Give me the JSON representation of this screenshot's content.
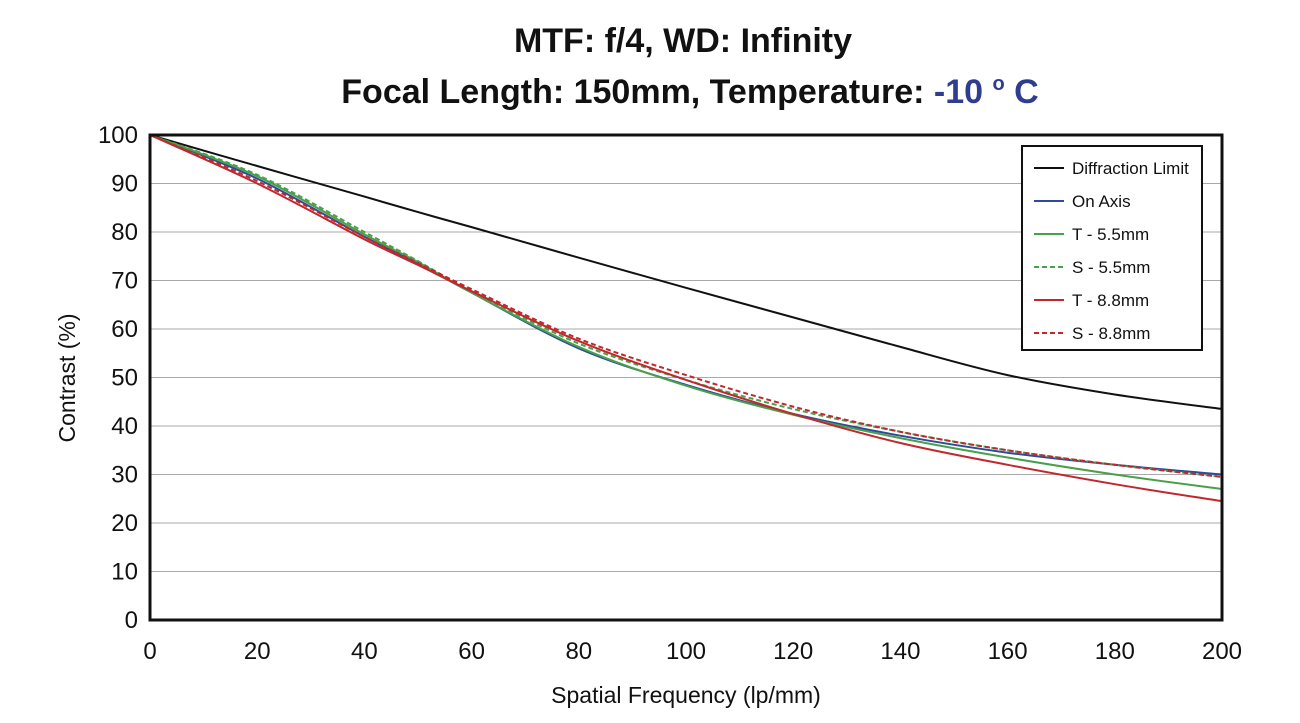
{
  "chart_data": {
    "type": "line",
    "title": {
      "line1": "MTF: f/4, WD: Infinity",
      "line2_prefix": "Focal Length: 150mm, Temperature: ",
      "line2_temp": "-10",
      "line2_deg": "o",
      "line2_unit": "C"
    },
    "xlabel": "Spatial Frequency (lp/mm)",
    "ylabel": "Contrast (%)",
    "xlim": [
      0,
      200
    ],
    "ylim": [
      0,
      100
    ],
    "x_ticks": [
      0,
      20,
      40,
      60,
      80,
      100,
      120,
      140,
      160,
      180,
      200
    ],
    "y_ticks": [
      0,
      10,
      20,
      30,
      40,
      50,
      60,
      70,
      80,
      90,
      100
    ],
    "grid": "horizontal",
    "legend_position": "top-right",
    "x": [
      0,
      20,
      40,
      50,
      60,
      80,
      100,
      120,
      140,
      160,
      180,
      200
    ],
    "series": [
      {
        "name": "Diffraction Limit",
        "color": "#111111",
        "dash": "solid",
        "values": [
          100,
          93.6,
          87.3,
          84.1,
          81.0,
          74.7,
          68.5,
          62.4,
          56.3,
          50.5,
          46.5,
          43.5
        ]
      },
      {
        "name": "On Axis",
        "color": "#2b4b9b",
        "dash": "solid",
        "values": [
          100,
          91.0,
          79.0,
          73.5,
          67.5,
          56.0,
          48.5,
          42.5,
          38.0,
          34.5,
          32.0,
          30.0
        ]
      },
      {
        "name": "T - 5.5mm",
        "color": "#4aa04a",
        "dash": "solid",
        "values": [
          100,
          91.5,
          79.5,
          73.8,
          67.5,
          56.3,
          48.3,
          42.3,
          37.5,
          33.5,
          30.0,
          27.0
        ]
      },
      {
        "name": "S - 5.5mm",
        "color": "#4aa04a",
        "dash": "dashed",
        "values": [
          100,
          91.8,
          80.0,
          74.0,
          67.8,
          57.0,
          49.5,
          43.5,
          38.8,
          35.0,
          32.0,
          29.5
        ]
      },
      {
        "name": "T - 8.8mm",
        "color": "#c0282e",
        "dash": "solid",
        "values": [
          100,
          90.0,
          78.5,
          73.2,
          67.8,
          57.5,
          49.5,
          42.5,
          36.5,
          32.0,
          28.0,
          24.5
        ]
      },
      {
        "name": "S - 8.8mm",
        "color": "#c0282e",
        "dash": "dashed",
        "values": [
          100,
          90.5,
          79.0,
          73.6,
          68.2,
          58.0,
          50.5,
          44.0,
          38.8,
          35.0,
          32.0,
          29.5
        ]
      }
    ]
  }
}
